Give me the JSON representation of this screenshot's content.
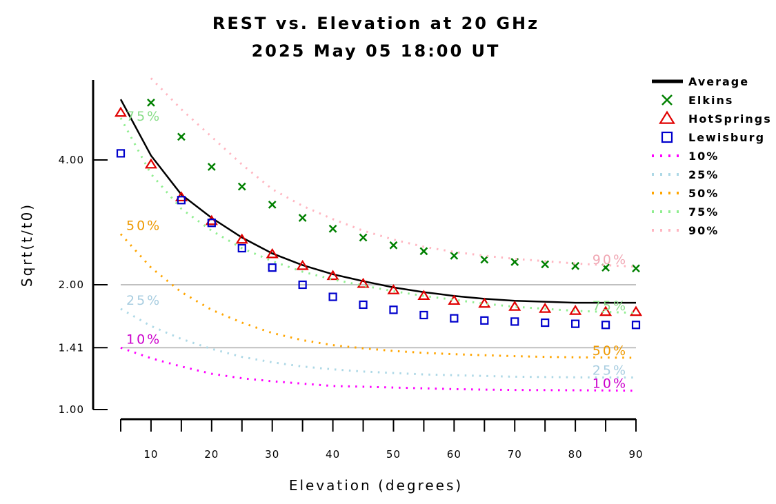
{
  "chart_data": {
    "type": "line",
    "title": "REST vs. Elevation at 20 GHz",
    "subtitle": "2025 May 05 18:00 UT",
    "xlabel": "Elevation (degrees)",
    "ylabel": "Sqrt(t/t0)",
    "y_scale": "log",
    "xlim": [
      3,
      92
    ],
    "ylim": [
      1.0,
      6.0
    ],
    "x_ticks": [
      10,
      20,
      30,
      40,
      50,
      60,
      70,
      80,
      90
    ],
    "y_ticks": [
      {
        "value": 1.0,
        "label": "1.00"
      },
      {
        "value": 1.41,
        "label": "1.41"
      },
      {
        "value": 2.0,
        "label": "2.00"
      },
      {
        "value": 4.0,
        "label": "4.00"
      }
    ],
    "reference_lines": [
      1.41,
      2.0
    ],
    "x": [
      5,
      10,
      15,
      20,
      25,
      30,
      35,
      40,
      45,
      50,
      55,
      60,
      65,
      70,
      75,
      80,
      85,
      90
    ],
    "series": [
      {
        "name": "Average",
        "kind": "line",
        "color": "#000000",
        "values": [
          5.6,
          4.1,
          3.3,
          2.9,
          2.6,
          2.38,
          2.23,
          2.12,
          2.04,
          1.97,
          1.92,
          1.88,
          1.85,
          1.83,
          1.82,
          1.81,
          1.81,
          1.81
        ]
      },
      {
        "name": "Elkins",
        "kind": "marker",
        "marker": "x",
        "color": "#008000",
        "values": [
          null,
          5.5,
          4.55,
          3.85,
          3.45,
          3.12,
          2.9,
          2.73,
          2.6,
          2.49,
          2.41,
          2.35,
          2.3,
          2.27,
          2.24,
          2.22,
          2.2,
          2.19
        ]
      },
      {
        "name": "HotSprings",
        "kind": "marker",
        "marker": "triangle",
        "color": "#e00000",
        "values": [
          5.2,
          3.9,
          3.25,
          2.85,
          2.57,
          2.37,
          2.22,
          2.1,
          2.01,
          1.94,
          1.88,
          1.83,
          1.8,
          1.77,
          1.75,
          1.73,
          1.72,
          1.72
        ]
      },
      {
        "name": "Lewisburg",
        "kind": "marker",
        "marker": "square",
        "color": "#0000cc",
        "values": [
          4.15,
          null,
          3.2,
          2.82,
          2.45,
          2.2,
          2.0,
          1.87,
          1.79,
          1.74,
          1.69,
          1.66,
          1.64,
          1.63,
          1.62,
          1.61,
          1.6,
          1.6
        ]
      },
      {
        "name": "10%",
        "kind": "dotted",
        "color": "#ff00ff",
        "label_color": "#cc00cc",
        "values": [
          1.41,
          1.33,
          1.27,
          1.22,
          1.19,
          1.17,
          1.155,
          1.14,
          1.135,
          1.13,
          1.125,
          1.12,
          1.117,
          1.115,
          1.114,
          1.113,
          1.112,
          1.11
        ]
      },
      {
        "name": "25%",
        "kind": "dotted",
        "color": "#add8e6",
        "label_color": "#a8cde0",
        "values": [
          1.75,
          1.59,
          1.48,
          1.4,
          1.34,
          1.3,
          1.27,
          1.25,
          1.235,
          1.225,
          1.215,
          1.21,
          1.205,
          1.2,
          1.198,
          1.196,
          1.195,
          1.195
        ]
      },
      {
        "name": "50%",
        "kind": "dotted",
        "color": "#ffa500",
        "label_color": "#ee9900",
        "values": [
          2.65,
          2.2,
          1.92,
          1.74,
          1.62,
          1.53,
          1.47,
          1.43,
          1.405,
          1.385,
          1.37,
          1.36,
          1.352,
          1.345,
          1.34,
          1.337,
          1.335,
          1.333
        ]
      },
      {
        "name": "75%",
        "kind": "dotted",
        "color": "#90ee90",
        "label_color": "#88dd88",
        "values": [
          5.05,
          3.7,
          3.05,
          2.7,
          2.45,
          2.28,
          2.15,
          2.06,
          1.99,
          1.93,
          1.88,
          1.84,
          1.8,
          1.77,
          1.75,
          1.73,
          1.72,
          1.71
        ]
      },
      {
        "name": "90%",
        "kind": "dotted",
        "color": "#ffb6c1",
        "label_color": "#f0a8b4",
        "values": [
          null,
          6.3,
          5.3,
          4.55,
          3.9,
          3.4,
          3.1,
          2.88,
          2.7,
          2.57,
          2.47,
          2.4,
          2.35,
          2.31,
          2.28,
          2.25,
          2.23,
          2.21
        ]
      }
    ],
    "curve_labels": [
      {
        "text": "75%",
        "series": "75%",
        "end": "left"
      },
      {
        "text": "50%",
        "series": "50%",
        "end": "left"
      },
      {
        "text": "25%",
        "series": "25%",
        "end": "left"
      },
      {
        "text": "10%",
        "series": "10%",
        "end": "left"
      },
      {
        "text": "90%",
        "series": "90%",
        "end": "right"
      },
      {
        "text": "75%",
        "series": "75%",
        "end": "right"
      },
      {
        "text": "50%",
        "series": "50%",
        "end": "right"
      },
      {
        "text": "25%",
        "series": "25%",
        "end": "right"
      },
      {
        "text": "10%",
        "series": "10%",
        "end": "right"
      }
    ],
    "legend": {
      "position": "right",
      "entries": [
        "Average",
        "Elkins",
        "HotSprings",
        "Lewisburg",
        "10%",
        "25%",
        "50%",
        "75%",
        "90%"
      ]
    },
    "grid": false
  }
}
